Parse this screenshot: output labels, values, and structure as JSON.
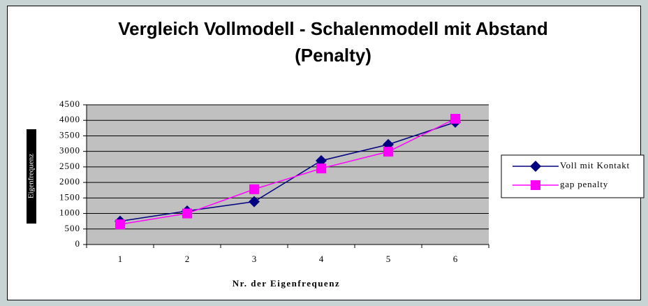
{
  "chart_data": {
    "type": "line",
    "title": "Vergleich Vollmodell - Schalenmodell mit Abstand (Penalty)",
    "xlabel": "Nr. der Eigenfrequenz",
    "ylabel": "Eigenfrequenz",
    "categories": [
      "1",
      "2",
      "3",
      "4",
      "5",
      "6"
    ],
    "series": [
      {
        "name": "Voll mit Kontakt",
        "color": "#000080",
        "marker": "diamond",
        "values": [
          750,
          1080,
          1380,
          2700,
          3220,
          3940
        ]
      },
      {
        "name": "gap penalty",
        "color": "#ff00ff",
        "marker": "square",
        "values": [
          650,
          1000,
          1780,
          2450,
          2990,
          4050
        ]
      }
    ],
    "ylim": [
      0,
      4500
    ],
    "yticks": [
      0,
      500,
      1000,
      1500,
      2000,
      2500,
      3000,
      3500,
      4000,
      4500
    ],
    "grid": true,
    "legend": "right"
  }
}
